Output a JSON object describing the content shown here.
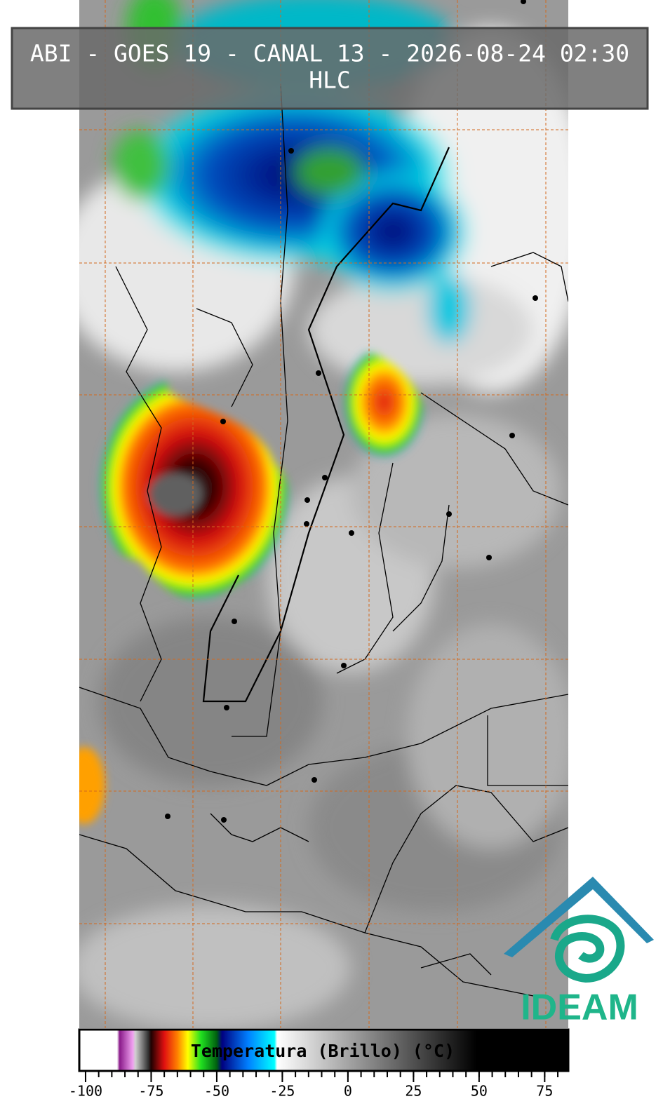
{
  "header": {
    "title": "ABI - GOES 19 - CANAL 13 - 2026-08-24 02:30",
    "subtitle": "HLC"
  },
  "colorbar": {
    "label": "Temperatura (Brillo) (°C)",
    "lim": [
      -102.4,
      84
    ],
    "ticks": [
      -100,
      -75,
      -50,
      -25,
      0,
      25,
      50,
      75
    ],
    "minor_tick_step": 5,
    "stops": [
      {
        "value": -102.4,
        "color": "#ffffff"
      },
      {
        "value": -88,
        "color": "#ffffff"
      },
      {
        "value": -87,
        "color": "#8a1a8a"
      },
      {
        "value": -82,
        "color": "#f0a0f0"
      },
      {
        "value": -81,
        "color": "#d0d0d0"
      },
      {
        "value": -76,
        "color": "#303030"
      },
      {
        "value": -75,
        "color": "#200000"
      },
      {
        "value": -70,
        "color": "#e01010"
      },
      {
        "value": -65,
        "color": "#ff8000"
      },
      {
        "value": -61,
        "color": "#ffff00"
      },
      {
        "value": -56,
        "color": "#20e020"
      },
      {
        "value": -50,
        "color": "#006010"
      },
      {
        "value": -48,
        "color": "#000080"
      },
      {
        "value": -38,
        "color": "#0080ff"
      },
      {
        "value": -28,
        "color": "#00ffff"
      },
      {
        "value": -27,
        "color": "#ffffff"
      },
      {
        "value": 49,
        "color": "#000000"
      },
      {
        "value": 84,
        "color": "#000000"
      }
    ]
  },
  "logo": {
    "text": "IDEAM"
  }
}
